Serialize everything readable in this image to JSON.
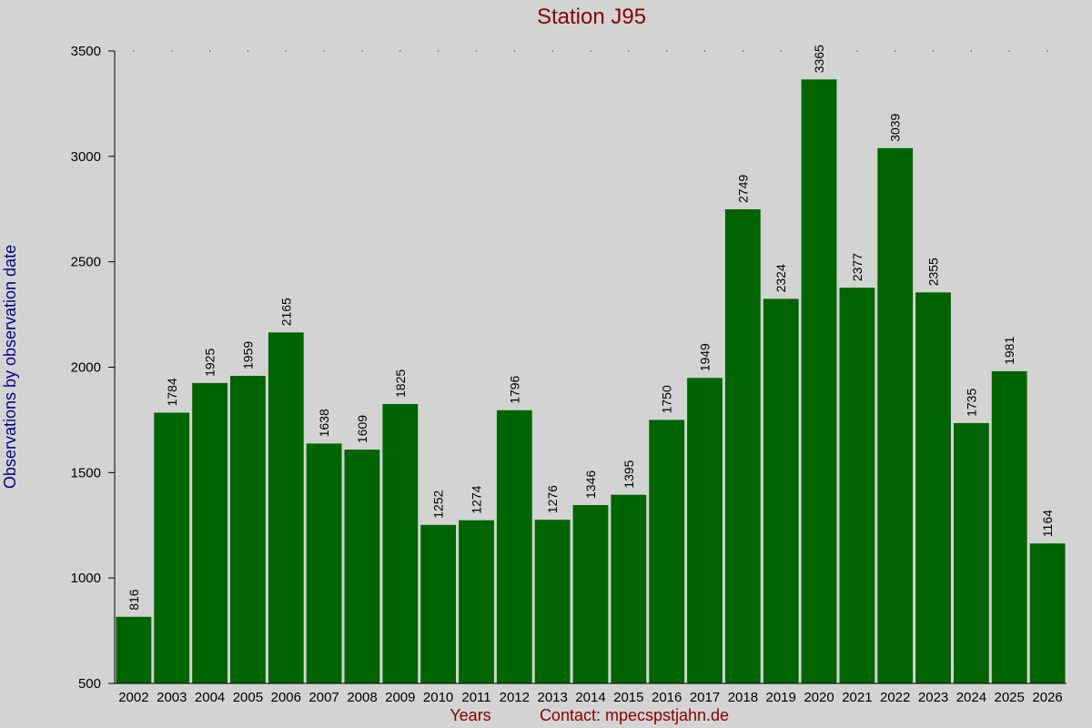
{
  "chart_data": {
    "type": "bar",
    "title": "Station J95",
    "xlabel": "Years",
    "ylabel": "Observations by observation date",
    "footer": "Contact: mpecspstjahn.de",
    "categories": [
      "2002",
      "2003",
      "2004",
      "2005",
      "2006",
      "2007",
      "2008",
      "2009",
      "2010",
      "2011",
      "2012",
      "2013",
      "2014",
      "2015",
      "2016",
      "2017",
      "2018",
      "2019",
      "2020",
      "2021",
      "2022",
      "2023",
      "2024",
      "2025",
      "2026"
    ],
    "values": [
      816,
      1784,
      1925,
      1959,
      2165,
      1638,
      1609,
      1825,
      1252,
      1274,
      1796,
      1276,
      1346,
      1395,
      1750,
      1949,
      2749,
      2324,
      3365,
      2377,
      3039,
      2355,
      1735,
      1981,
      1164
    ],
    "ylim": [
      500,
      3500
    ],
    "yticks": [
      500,
      1000,
      1500,
      2000,
      2500,
      3000,
      3500
    ],
    "grid": false,
    "bar_color": "#006400",
    "background": "#d3d3d3"
  }
}
